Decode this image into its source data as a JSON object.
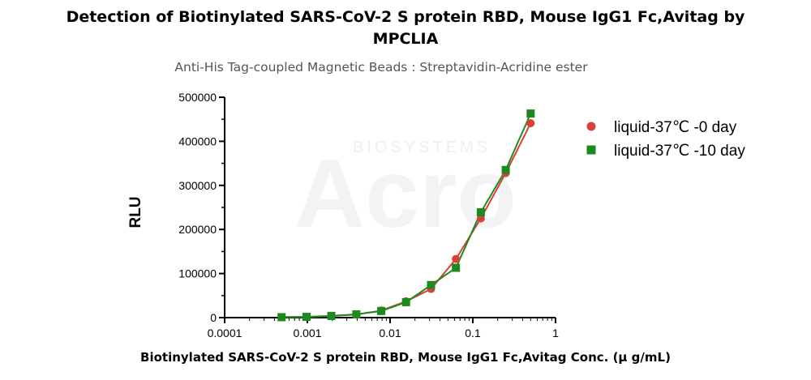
{
  "chart_data": {
    "type": "scatter",
    "title": "Detection of Biotinylated SARS-CoV-2 S protein RBD, Mouse IgG1 Fc,Avitag by MPCLIA",
    "title_lines": [
      "Detection of Biotinylated SARS-CoV-2 S protein RBD, Mouse IgG1 Fc,Avitag by",
      "MPCLIA"
    ],
    "subtitle": "Anti-His Tag-coupled Magnetic Beads : Streptavidin-Acridine ester",
    "xlabel": "Biotinylated SARS-CoV-2 S protein RBD, Mouse IgG1 Fc,Avitag Conc. (μ g/mL)",
    "ylabel": "RLU",
    "xscale": "log",
    "xlim": [
      0.0001,
      1
    ],
    "ylim": [
      0,
      500000
    ],
    "x_ticks": [
      "0.0001",
      "0.001",
      "0.01",
      "0.1",
      "1"
    ],
    "y_ticks": [
      "0",
      "100000",
      "200000",
      "300000",
      "400000",
      "500000"
    ],
    "grid": false,
    "legend_position": "right",
    "watermark": [
      "BIOSYSTEMS",
      "Acro"
    ],
    "series": [
      {
        "name": "liquid-37℃ -0 day",
        "marker": "circle",
        "color": "#d9403a",
        "x": [
          0.000488,
          0.000977,
          0.00195,
          0.00391,
          0.00781,
          0.0156,
          0.03125,
          0.0625,
          0.125,
          0.25,
          0.5
        ],
        "y": [
          1000,
          1500,
          3500,
          7000,
          16000,
          37000,
          65000,
          133000,
          225000,
          328000,
          441000
        ]
      },
      {
        "name": "liquid-37℃ -10 day",
        "marker": "square",
        "color": "#1e8a1e",
        "x": [
          0.000488,
          0.000977,
          0.00195,
          0.00391,
          0.00781,
          0.0156,
          0.03125,
          0.0625,
          0.125,
          0.25,
          0.5
        ],
        "y": [
          1000,
          1800,
          3800,
          7500,
          15000,
          35000,
          74000,
          113000,
          239000,
          335000,
          463000
        ]
      }
    ]
  }
}
